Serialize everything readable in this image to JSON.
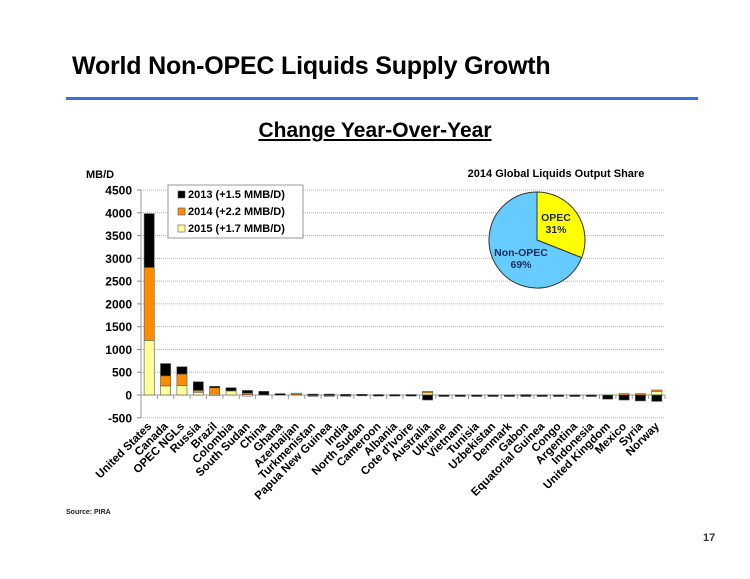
{
  "page": {
    "title": "World Non-OPEC Liquids Supply Growth",
    "subtitle": "Change Year-Over-Year",
    "source": "Source: PIRA",
    "page_number": "17",
    "accent_color": "#3b6fe0"
  },
  "chart_data": [
    {
      "type": "bar",
      "stacked": true,
      "title": "",
      "ylabel": "MB/D",
      "xlabel": "",
      "ylim": [
        -500,
        4500
      ],
      "yticks": [
        -500,
        0,
        500,
        1000,
        1500,
        2000,
        2500,
        3000,
        3500,
        4000,
        4500
      ],
      "ytick_labels": [
        "-500",
        "0",
        "500",
        "1000",
        "1500",
        "2000",
        "2500",
        "3000",
        "3500",
        "4000",
        "4500"
      ],
      "grid": true,
      "legend_position": "top-left",
      "categories": [
        "United States",
        "Canada",
        "OPEC NGLs",
        "Russia",
        "Brazil",
        "Colombia",
        "South Sudan",
        "China",
        "Ghana",
        "Azerbaijan",
        "Turkmenistan",
        "Papua New Guinea",
        "India",
        "North Sudan",
        "Cameroon",
        "Albania",
        "Cote d'Ivoire",
        "Australia",
        "Ukraine",
        "Vietnam",
        "Tunisia",
        "Uzbekistan",
        "Denmark",
        "Gabon",
        "Equatorial Guinea",
        "Congo",
        "Argentina",
        "Indonesia",
        "United Kingdom",
        "Mexico",
        "Syria",
        "Norway"
      ],
      "series": [
        {
          "name": "2015 (+1.7 MMB/D)",
          "color": "#ffff99",
          "values": [
            1200,
            200,
            210,
            60,
            20,
            90,
            10,
            0,
            0,
            30,
            5,
            5,
            5,
            0,
            0,
            0,
            0,
            50,
            0,
            0,
            0,
            0,
            0,
            0,
            0,
            0,
            0,
            0,
            0,
            0,
            0,
            90
          ]
        },
        {
          "name": "2014 (+2.2 MMB/D)",
          "color": "#ff8c00",
          "values": [
            1600,
            220,
            250,
            40,
            140,
            0,
            30,
            0,
            0,
            10,
            0,
            0,
            0,
            0,
            0,
            0,
            0,
            30,
            0,
            0,
            0,
            0,
            0,
            10,
            0,
            0,
            0,
            0,
            0,
            30,
            30,
            20
          ]
        },
        {
          "name": "2013 (+1.5 MMB/D)",
          "color": "#000000",
          "values": [
            1180,
            270,
            160,
            190,
            30,
            70,
            60,
            80,
            30,
            0,
            15,
            15,
            10,
            15,
            10,
            10,
            10,
            -110,
            -15,
            -15,
            -15,
            -15,
            -15,
            -20,
            -15,
            -20,
            -15,
            -20,
            -90,
            -110,
            -130,
            -140
          ]
        }
      ],
      "legend": [
        "2013 (+1.5 MMB/D)",
        "2014 (+2.2 MMB/D)",
        "2015 (+1.7 MMB/D)"
      ]
    },
    {
      "type": "pie",
      "title": "2014 Global Liquids Output Share",
      "slices": [
        {
          "label": "OPEC",
          "value": 31,
          "display": "31%",
          "color": "#ffff00"
        },
        {
          "label": "Non-OPEC",
          "value": 69,
          "display": "69%",
          "color": "#66ccff"
        }
      ]
    }
  ]
}
